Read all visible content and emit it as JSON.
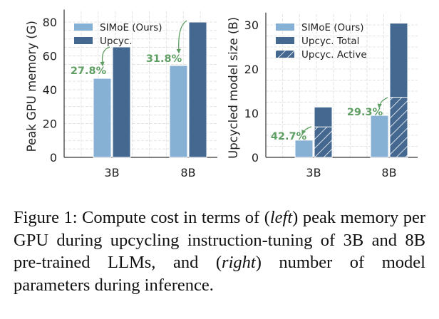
{
  "chart_data": [
    {
      "type": "bar",
      "title": "",
      "xlabel": "",
      "ylabel": "Peak GPU memory (G)",
      "categories": [
        "3B",
        "8B"
      ],
      "ylim": [
        0,
        84
      ],
      "yticks": [
        0,
        20,
        40,
        60,
        80
      ],
      "grid": true,
      "legend_position": "top-left",
      "series": [
        {
          "name": "SIMoE (Ours)",
          "values": [
            46.7,
            54.3
          ],
          "color": "#86b0d4"
        },
        {
          "name": "Upcyc.",
          "values": [
            65.3,
            80.0
          ],
          "color": "#44688f"
        }
      ],
      "annotations": [
        {
          "category": "3B",
          "text": "27.8%",
          "color": "#5f9f64"
        },
        {
          "category": "8B",
          "text": "31.8%",
          "color": "#5f9f64"
        }
      ]
    },
    {
      "type": "bar",
      "title": "",
      "xlabel": "",
      "ylabel": "Upcycled model size (B)",
      "categories": [
        "3B",
        "8B"
      ],
      "ylim": [
        0,
        31.5
      ],
      "yticks": [
        0,
        10,
        20,
        30
      ],
      "grid": true,
      "legend_position": "top-left",
      "series": [
        {
          "name": "SIMoE (Ours)",
          "values": [
            3.9,
            9.5
          ],
          "color": "#86b0d4"
        },
        {
          "name": "Upcyc. Total",
          "values": [
            11.4,
            30.4
          ],
          "color": "#44688f"
        },
        {
          "name": "Upcyc. Active",
          "values": [
            6.9,
            13.6
          ],
          "color": "#44688f",
          "hatch": true
        }
      ],
      "annotations": [
        {
          "category": "3B",
          "text": "42.7%",
          "color": "#5f9f64"
        },
        {
          "category": "8B",
          "text": "29.3%",
          "color": "#5f9f64"
        }
      ]
    }
  ],
  "caption": {
    "p1": "Figure 1: Compute cost in terms of (",
    "left": "left",
    "p2": ") peak memory per GPU during upcycling instruction-tuning of 3B and 8B pre-trained LLMs, and (",
    "right": "right",
    "p3": ") number of model parameters during inference."
  }
}
